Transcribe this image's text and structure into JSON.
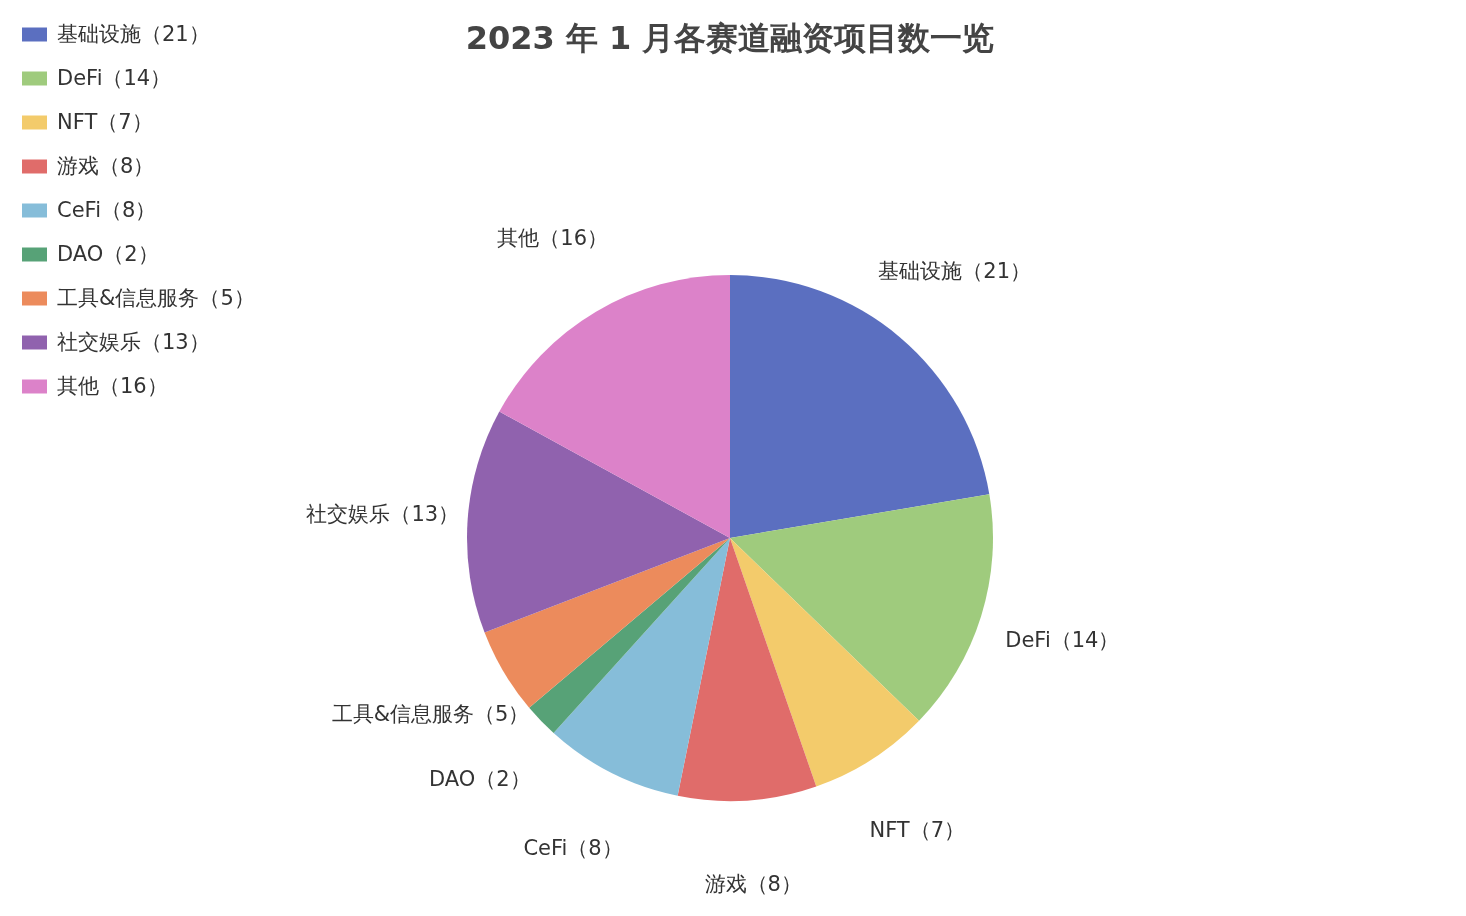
{
  "chart_data": {
    "type": "pie",
    "title": "2023 年 1 月各赛道融资项目数一览",
    "categories": [
      "基础设施（21）",
      "DeFi（14）",
      "NFT（7）",
      "游戏（8）",
      "CeFi（8）",
      "DAO（2）",
      "工具&信息服务（5）",
      "社交娱乐（13）",
      "其他（16）"
    ],
    "values": [
      21,
      14,
      7,
      8,
      8,
      2,
      5,
      13,
      16
    ],
    "colors": [
      "#5b6fc0",
      "#9fcb7d",
      "#f3cb6b",
      "#e06c6a",
      "#86bdd9",
      "#57a277",
      "#ec8b5c",
      "#9062ae",
      "#dc82c9"
    ],
    "legend": "top left"
  }
}
